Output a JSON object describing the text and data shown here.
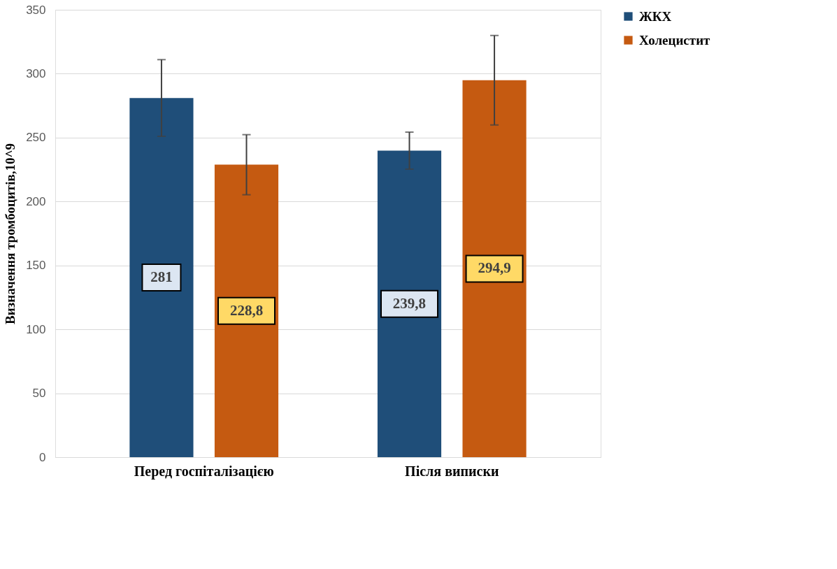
{
  "chart_data": {
    "type": "bar",
    "ylabel": "Визначення тромбоцитів,10^9",
    "categories": [
      "Перед госпіталізацією",
      "Після виписки"
    ],
    "series": [
      {
        "name": "ЖКХ",
        "color": "#1f4e79",
        "values": [
          281,
          239.8
        ],
        "errors": [
          30,
          14.5
        ],
        "value_labels": [
          "281",
          "239,8"
        ]
      },
      {
        "name": "Холецистит",
        "color": "#c55a11",
        "values": [
          228.8,
          294.9
        ],
        "errors": [
          23.5,
          35
        ],
        "value_labels": [
          "228,8",
          "294,9"
        ]
      }
    ],
    "ylim": [
      0,
      350
    ],
    "yticks": [
      0,
      50,
      100,
      150,
      200,
      250,
      300,
      350
    ],
    "grid": "y",
    "legend": "right"
  }
}
